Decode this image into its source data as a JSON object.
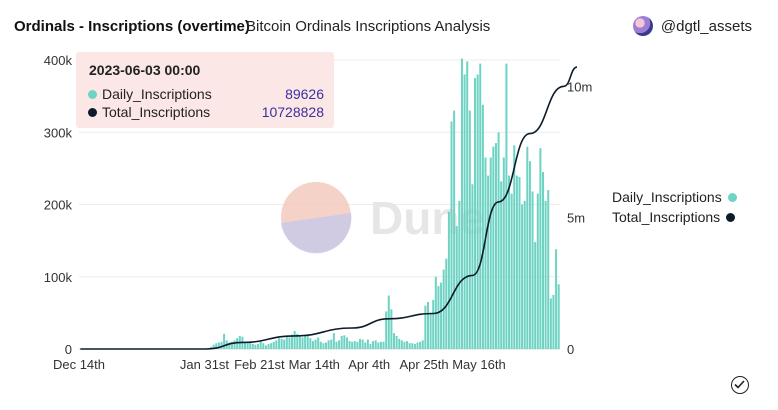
{
  "header": {
    "title": "Ordinals - Inscriptions (overtime)",
    "subtitle": "Bitcoin Ordinals Inscriptions Analysis",
    "author": "@dgtl_assets"
  },
  "watermark": "Dune",
  "tooltip": {
    "date": "2023-06-03 00:00",
    "rows": [
      {
        "label": "Daily_Inscriptions",
        "value": "89626",
        "color": "#6fd3c4"
      },
      {
        "label": "Total_Inscriptions",
        "value": "10728828",
        "color": "#0d1b2a"
      }
    ]
  },
  "legend": [
    {
      "label": "Daily_Inscriptions",
      "color": "#6fd3c4"
    },
    {
      "label": "Total_Inscriptions",
      "color": "#0d1b2a"
    }
  ],
  "chart_data": {
    "type": "bar",
    "title": "Ordinals - Inscriptions (overtime)",
    "x_ticks": [
      "Dec 14th",
      "Jan 31st",
      "Feb 21st",
      "Mar 14th",
      "Apr 4th",
      "Apr 25th",
      "May 16th"
    ],
    "y_left": {
      "ticks": [
        "0",
        "100k",
        "200k",
        "300k",
        "400k"
      ],
      "range": [
        0,
        400000
      ]
    },
    "y_right": {
      "ticks": [
        "0",
        "5m",
        "10m"
      ],
      "range": [
        0,
        11000000
      ]
    },
    "start_date": "2022-12-14",
    "series": [
      {
        "name": "Daily_Inscriptions",
        "type": "bar",
        "axis": "left",
        "color": "#6fd3c4",
        "values": [
          0,
          0,
          0,
          0,
          0,
          0,
          0,
          0,
          0,
          0,
          0,
          0,
          0,
          0,
          0,
          0,
          0,
          0,
          0,
          0,
          0,
          0,
          0,
          0,
          0,
          0,
          0,
          0,
          0,
          0,
          0,
          0,
          0,
          0,
          0,
          0,
          0,
          0,
          0,
          0,
          0,
          0,
          0,
          0,
          0,
          0,
          0,
          0,
          500,
          1000,
          3000,
          6000,
          8000,
          9000,
          10000,
          21000,
          12000,
          9000,
          10000,
          12000,
          15000,
          18000,
          17000,
          10000,
          8000,
          9000,
          7000,
          6000,
          7000,
          10000,
          8000,
          5000,
          7000,
          8000,
          10000,
          12000,
          15000,
          14000,
          13000,
          17000,
          16000,
          20000,
          25000,
          21000,
          18000,
          16000,
          18000,
          19000,
          15000,
          11000,
          13000,
          16000,
          10000,
          8000,
          9000,
          12000,
          13000,
          22000,
          10000,
          12000,
          18000,
          19000,
          16000,
          11000,
          10000,
          11000,
          10000,
          14000,
          13000,
          9000,
          13000,
          7000,
          11000,
          12000,
          9000,
          10000,
          10000,
          52000,
          74000,
          55000,
          22000,
          18000,
          14000,
          12000,
          10000,
          11000,
          8000,
          8000,
          7000,
          9000,
          10000,
          12000,
          60000,
          65000,
          50000,
          68000,
          100000,
          87000,
          92000,
          110000,
          125000,
          190000,
          315000,
          330000,
          170000,
          205000,
          402000,
          380000,
          398000,
          330000,
          228000,
          375000,
          380000,
          395000,
          338000,
          265000,
          240000,
          265000,
          280000,
          285000,
          300000,
          232000,
          265000,
          395000,
          240000,
          215000,
          282000,
          240000,
          238000,
          200000,
          205000,
          280000,
          260000,
          218000,
          148000,
          215000,
          278000,
          245000,
          205000,
          220000,
          70000,
          75000,
          138000,
          89626
        ]
      },
      {
        "name": "Total_Inscriptions",
        "type": "line",
        "axis": "right",
        "color": "#0d1b2a",
        "keypoints": [
          [
            0,
            0
          ],
          [
            48,
            0
          ],
          [
            62,
            250000
          ],
          [
            82,
            500000
          ],
          [
            104,
            800000
          ],
          [
            118,
            1150000
          ],
          [
            135,
            1350000
          ],
          [
            150,
            2800000
          ],
          [
            160,
            5600000
          ],
          [
            172,
            8200000
          ],
          [
            185,
            10000000
          ],
          [
            190,
            10728828
          ]
        ]
      }
    ]
  }
}
